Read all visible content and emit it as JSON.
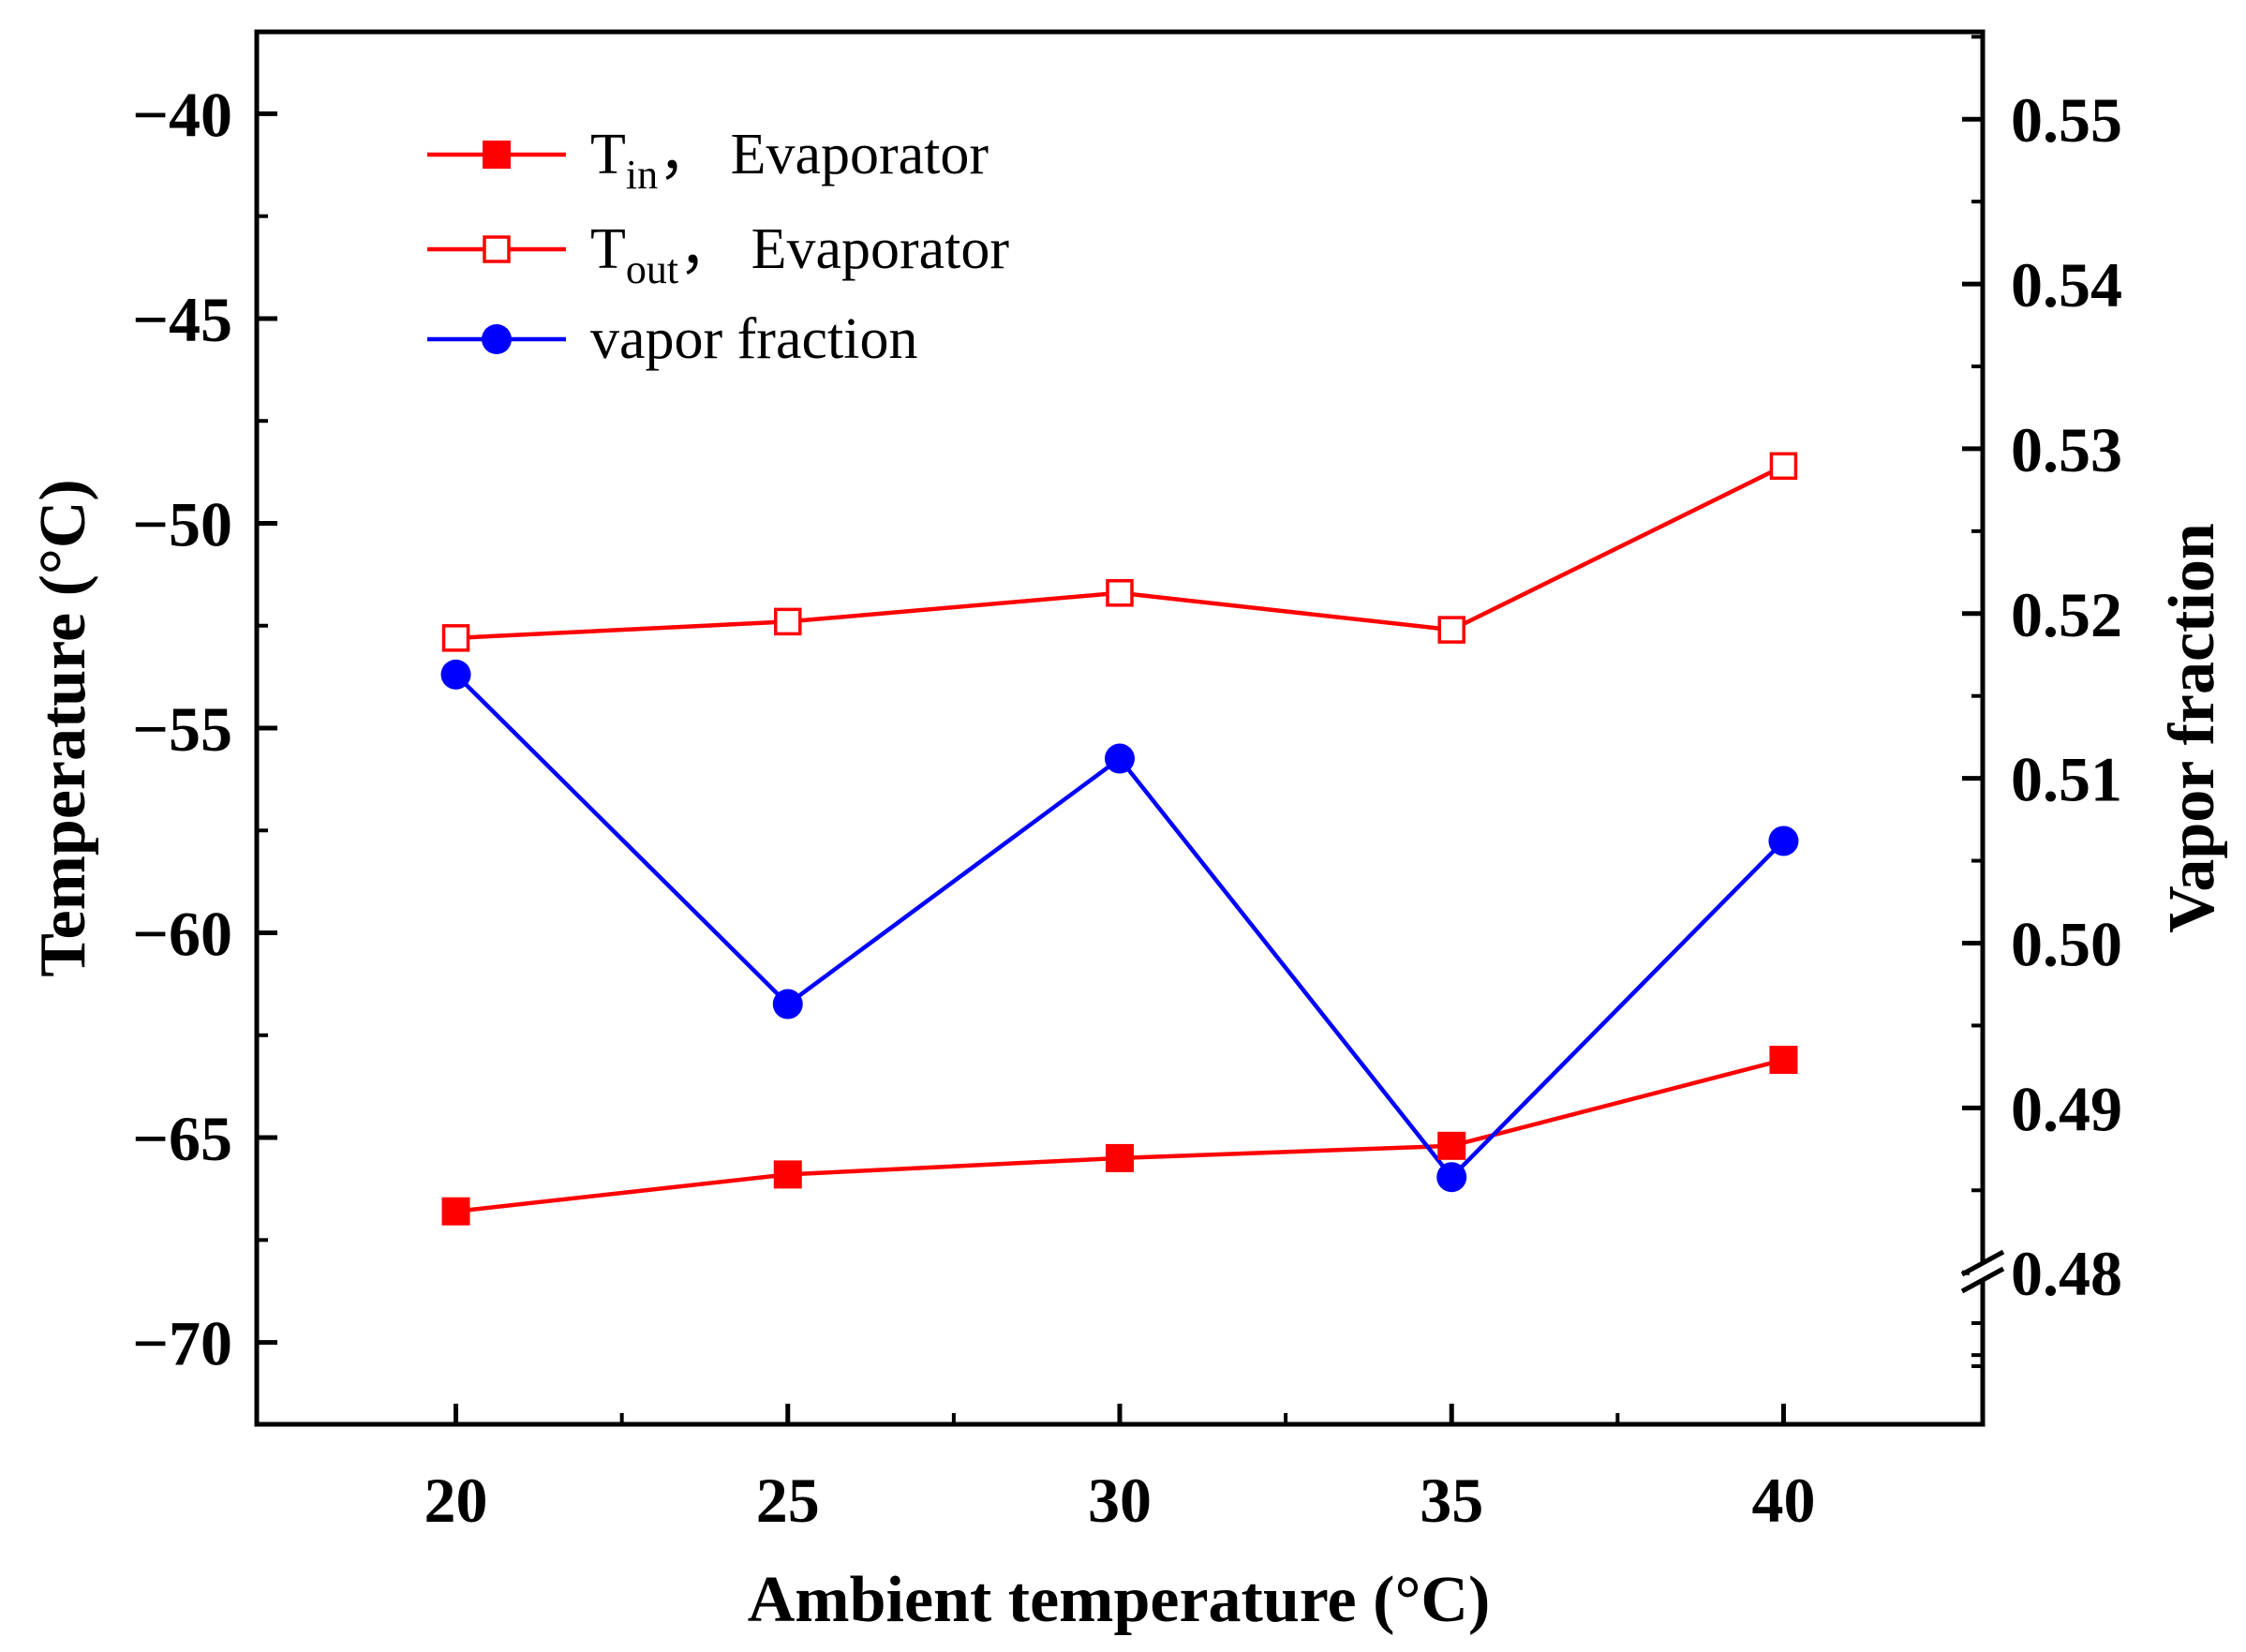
{
  "chart_data": {
    "type": "line",
    "x": [
      20,
      25,
      30,
      35,
      40
    ],
    "xlabel": "Ambient temperature (°C)",
    "ylabel": "Temperature (°C)",
    "y2label": "Vapor fraction",
    "xlim": [
      17,
      43
    ],
    "ylim": [
      -72,
      -38
    ],
    "y2lim": [
      0.4708,
      0.5553
    ],
    "xticks": [
      "20",
      "25",
      "30",
      "35",
      "40"
    ],
    "yticks": [
      "−40",
      "−45",
      "−50",
      "−55",
      "−60",
      "−65",
      "−70"
    ],
    "ytick_values": [
      -40,
      -45,
      -50,
      -55,
      -60,
      -65,
      -70
    ],
    "y2ticks": [
      "0.55",
      "0.54",
      "0.53",
      "0.52",
      "0.51",
      "0.50",
      "0.49",
      "0.48"
    ],
    "y2tick_values": [
      0.55,
      0.54,
      0.53,
      0.52,
      0.51,
      0.5,
      0.49,
      0.48
    ],
    "y2_axis_break": true,
    "legend_position": "top-left",
    "series": [
      {
        "name_main": "T",
        "name_sub": "in",
        "name_rest": "，  Evaporator",
        "axis": "left",
        "marker": "filled-square",
        "color": "#ff0000",
        "values": [
          -66.8,
          -65.9,
          -65.5,
          -65.2,
          -63.1
        ]
      },
      {
        "name_main": "T",
        "name_sub": "out",
        "name_rest": "，  Evaporator",
        "axis": "left",
        "marker": "open-square",
        "color": "#ff0000",
        "values": [
          -52.8,
          -52.4,
          -51.7,
          -52.6,
          -48.6
        ]
      },
      {
        "name_main": "vapor fraction",
        "name_sub": "",
        "name_rest": "",
        "axis": "right",
        "marker": "filled-circle",
        "color": "#0000ff",
        "values": [
          0.5163,
          0.4963,
          0.5112,
          0.4858,
          0.5062
        ]
      }
    ]
  }
}
